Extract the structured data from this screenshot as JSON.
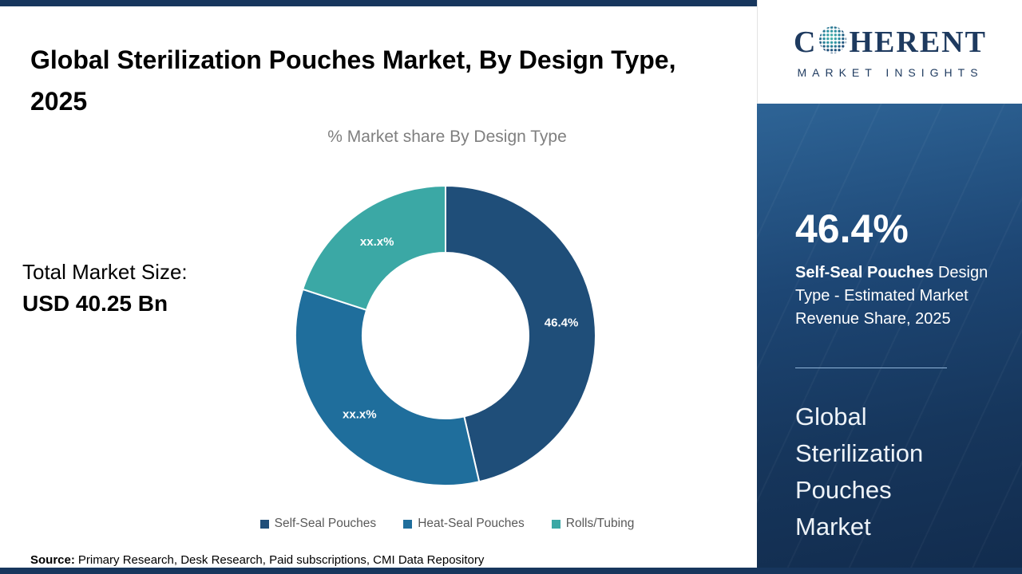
{
  "page": {
    "title": "Global Sterilization Pouches Market, By Design Type, 2025",
    "total_market_label": "Total Market Size:",
    "total_market_value": "USD 40.25 Bn",
    "source_label": "Source:",
    "source_text": "Primary Research, Desk Research, Paid subscriptions, CMI Data Repository"
  },
  "logo": {
    "name_prefix": "C",
    "name_suffix": "HERENT",
    "tagline": "MARKET INSIGHTS",
    "globe_icon": "dotted-globe-icon",
    "brand_color": "#1e3a5f"
  },
  "chart_data": {
    "type": "pie",
    "subtype": "donut",
    "title": "% Market share By Design Type",
    "categories": [
      "Self-Seal Pouches",
      "Heat-Seal Pouches",
      "Rolls/Tubing"
    ],
    "values": [
      46.4,
      33.6,
      20.0
    ],
    "value_labels": [
      "46.4%",
      "xx.x%",
      "xx.x%"
    ],
    "colors": [
      "#1F4E79",
      "#1F6E9C",
      "#3BA8A5"
    ],
    "note": "Only the Self-Seal Pouches share (46.4%) is labeled; other slice values are masked as xx.x% and estimated from arc angles",
    "legend_position": "bottom",
    "start_angle_deg": 0,
    "direction": "clockwise"
  },
  "panel": {
    "stat_value": "46.4%",
    "stat_desc_bold": "Self-Seal Pouches",
    "stat_desc_rest": " Design Type - Estimated Market Revenue Share, 2025",
    "market_name": "Global Sterilization Pouches Market",
    "bg_top": "#2e6496",
    "bg_bottom": "#122c4e"
  }
}
